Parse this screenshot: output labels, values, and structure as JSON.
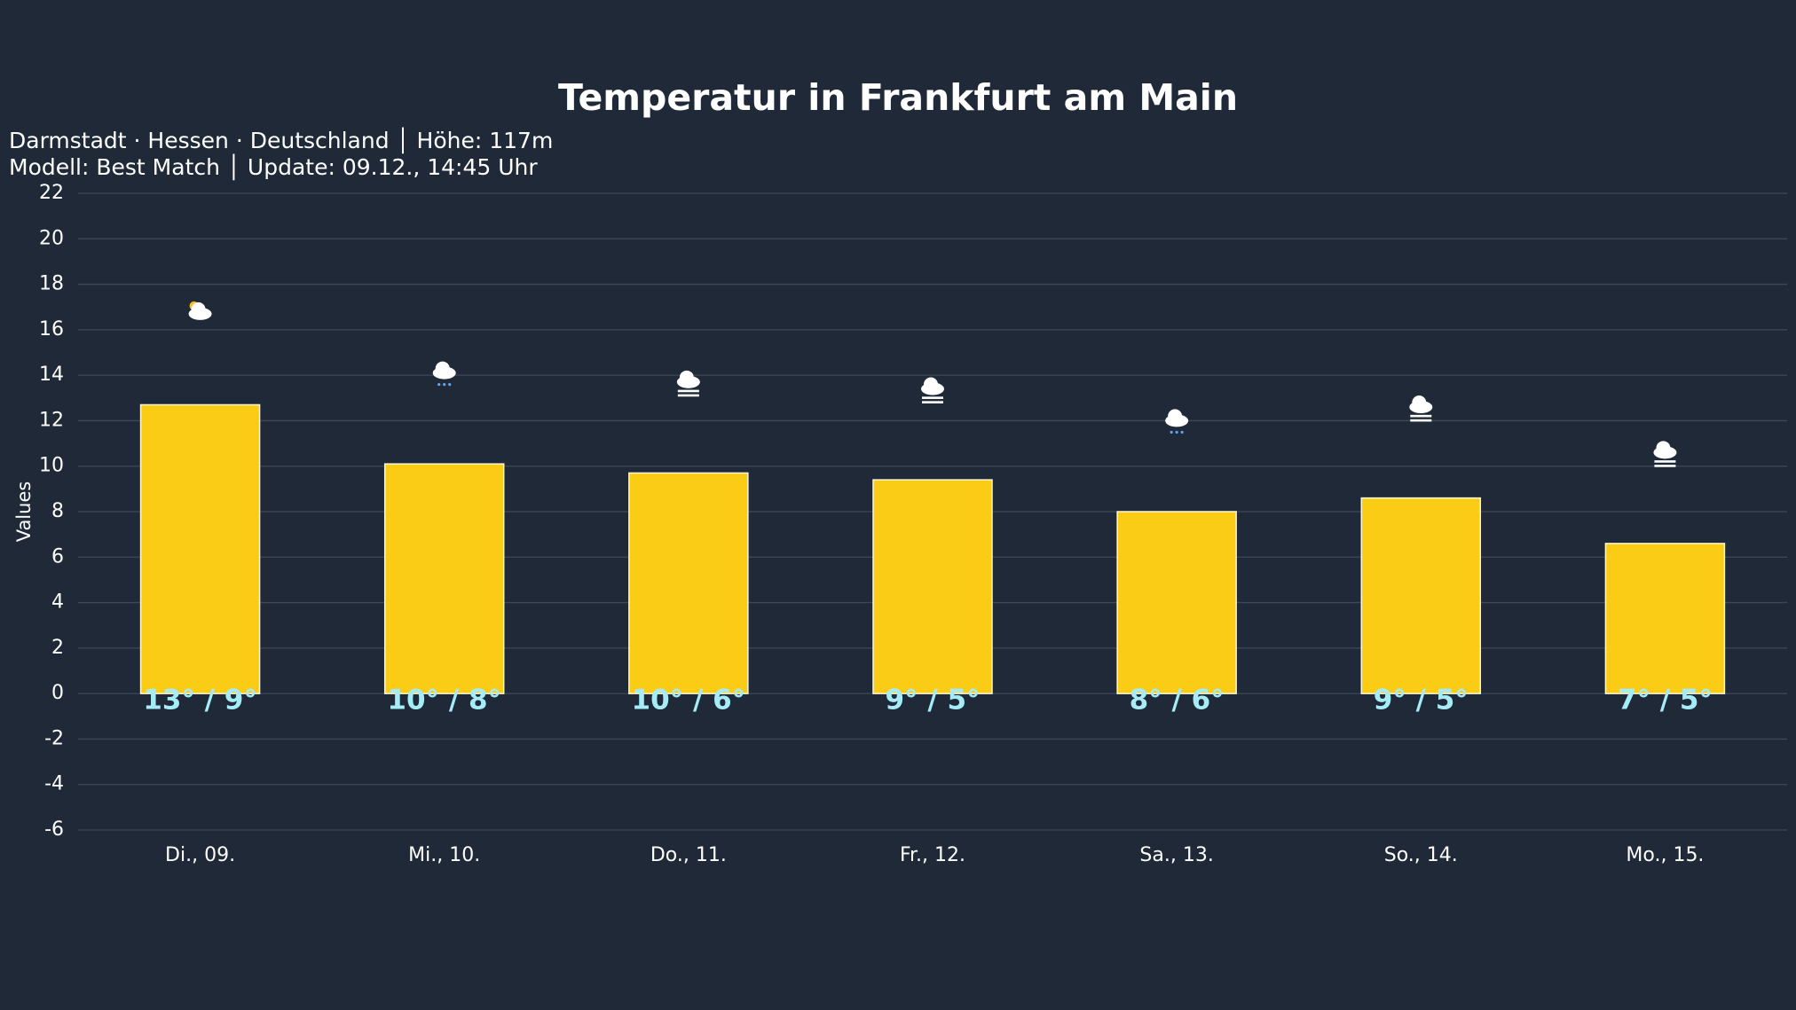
{
  "chart_data": {
    "type": "bar",
    "title": "Temperatur in Frankfurt am Main",
    "subtitle": [
      "Darmstadt · Hessen · Deutschland │ Höhe: 117m",
      "Modell: Best Match │ Update: 09.12., 14:45 Uhr"
    ],
    "y_label": "Values",
    "categories": [
      "Di., 09.",
      "Mi., 10.",
      "Do., 11.",
      "Fr., 12.",
      "Sa., 13.",
      "So., 14.",
      "Mo., 15."
    ],
    "values": [
      12.7,
      10.1,
      9.7,
      9.4,
      8.0,
      8.6,
      6.6
    ],
    "value_labels": [
      "13° / 9°",
      "10° / 8°",
      "10° / 6°",
      "9° / 5°",
      "8° / 6°",
      "9° / 5°",
      "7° / 5°"
    ],
    "color": "#facc15",
    "ylim": [
      -6,
      22
    ],
    "yticks": [
      -6,
      -4,
      -2,
      0,
      2,
      4,
      6,
      8,
      10,
      12,
      14,
      16,
      18,
      20,
      22
    ],
    "grid": true
  }
}
